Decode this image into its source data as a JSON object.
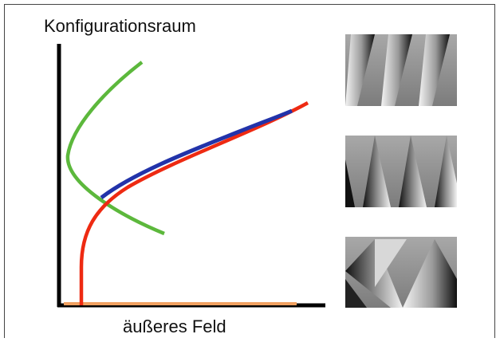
{
  "labels": {
    "y_axis": "Konfigurationsraum",
    "x_axis": "äußeres Feld"
  }
}
